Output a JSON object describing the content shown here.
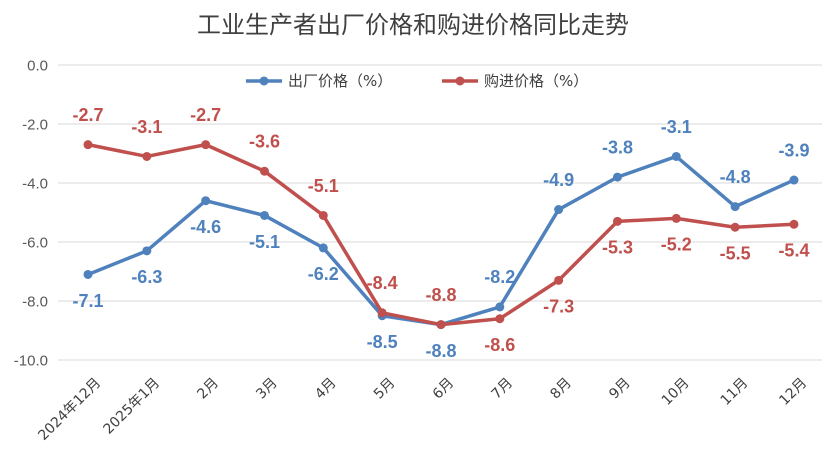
{
  "chart_data": {
    "type": "line",
    "title": "工业生产者出厂价格和购进价格同比走势",
    "categories": [
      "2024年12月",
      "2025年1月",
      "2月",
      "3月",
      "4月",
      "5月",
      "6月",
      "7月",
      "8月",
      "9月",
      "10月",
      "11月",
      "12月"
    ],
    "series": [
      {
        "name": "出厂价格（%）",
        "color": "#4F81BD",
        "values": [
          -7.1,
          -6.3,
          -4.6,
          -5.1,
          -6.2,
          -8.5,
          -8.8,
          -8.2,
          -4.9,
          -3.8,
          -3.1,
          -4.8,
          -3.9
        ]
      },
      {
        "name": "购进价格（%）",
        "color": "#C0504D",
        "values": [
          -2.7,
          -3.1,
          -2.7,
          -3.6,
          -5.1,
          -8.4,
          -8.8,
          -8.6,
          -7.3,
          -5.3,
          -5.2,
          -5.5,
          -5.4
        ]
      }
    ],
    "y_ticks": [
      0,
      -2,
      -4,
      -6,
      -8,
      -10
    ],
    "ylim": [
      -10,
      0
    ],
    "xlabel": "",
    "ylabel": "",
    "grid": true,
    "legend_position": "top-center",
    "data_labels": true
  },
  "colors": {
    "grid": "#D9D9D9",
    "axis_text": "#595959",
    "title": "#404040"
  }
}
